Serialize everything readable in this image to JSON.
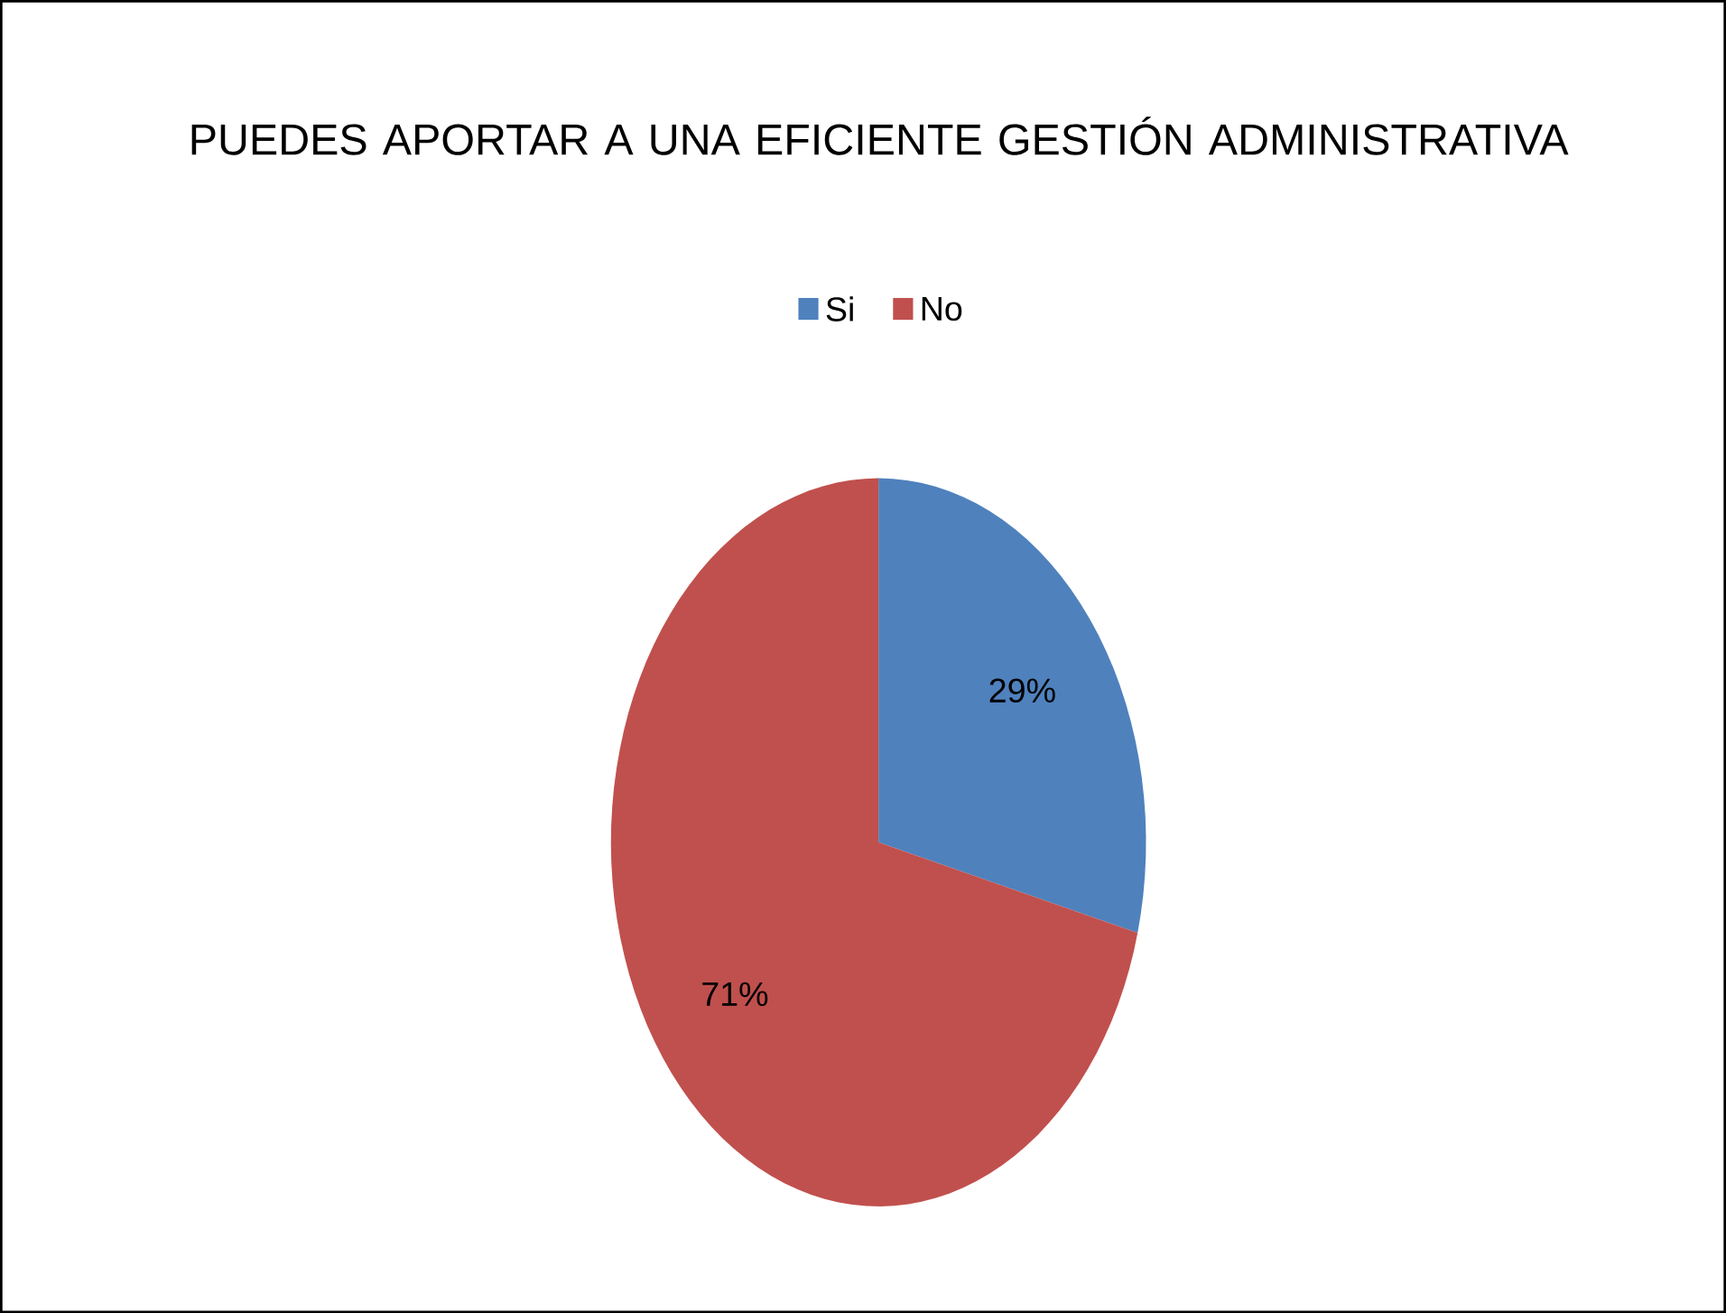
{
  "chart_data": {
    "type": "pie",
    "title": "PUEDES APORTAR A UNA EFICIENTE GESTIÓN ADMINISTRATIVA",
    "categories": [
      "Si",
      "No"
    ],
    "values": [
      29,
      71
    ],
    "colors": [
      "#4f81bd",
      "#c0504d"
    ],
    "value_labels": [
      "29%",
      "71%"
    ],
    "legend": "top"
  }
}
